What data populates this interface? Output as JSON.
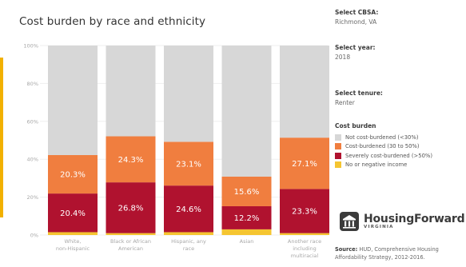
{
  "title": "Cost burden by race and ethnicity",
  "controls": [
    {
      "label": "Select CBSA:",
      "value": "Richmond, VA"
    },
    {
      "label": "Select year:",
      "value": "2018"
    },
    {
      "label": "Select tenure:",
      "value": "Renter"
    }
  ],
  "legend": {
    "title": "Cost burden",
    "items": [
      {
        "label": "Not cost-burdened (<30%)",
        "color": "#d7d7d7"
      },
      {
        "label": "Cost-burdened (30 to 50%)",
        "color": "#f07e3f"
      },
      {
        "label": "Severely cost-burdened (>50%)",
        "color": "#b0122f"
      },
      {
        "label": "No or negative income",
        "color": "#f5c531"
      }
    ]
  },
  "logo": {
    "name": "HousingForward",
    "sub": "VIRGINIA"
  },
  "source": {
    "label": "Source:",
    "text": "HUD, Comprehensive Housing Affordability Strategy, 2012-2016."
  },
  "chart_data": {
    "type": "bar",
    "stacked": true,
    "categories": [
      "White, non-Hispanic",
      "Black or African American",
      "Hispanic, any race",
      "Asian",
      "Another race including multiracial"
    ],
    "y_ticks": [
      "0%",
      "20%",
      "40%",
      "60%",
      "80%",
      "100%"
    ],
    "ylim": [
      0,
      100
    ],
    "series": [
      {
        "name": "No or negative income",
        "color": "#f5c531",
        "values": [
          1.5,
          1.0,
          1.5,
          3.0,
          1.0
        ],
        "labels": [
          "",
          "",
          "",
          "",
          ""
        ]
      },
      {
        "name": "Severely cost-burdened (>50%)",
        "color": "#b0122f",
        "values": [
          20.4,
          26.8,
          24.6,
          12.2,
          23.3
        ],
        "labels": [
          "20.4%",
          "26.8%",
          "24.6%",
          "12.2%",
          "23.3%"
        ]
      },
      {
        "name": "Cost-burdened (30 to 50%)",
        "color": "#f07e3f",
        "values": [
          20.3,
          24.3,
          23.1,
          15.6,
          27.1
        ],
        "labels": [
          "20.3%",
          "24.3%",
          "23.1%",
          "15.6%",
          "27.1%"
        ]
      },
      {
        "name": "Not cost-burdened (<30%)",
        "color": "#d7d7d7",
        "values": [
          57.8,
          47.9,
          50.8,
          69.2,
          48.6
        ],
        "labels": [
          "",
          "",
          "",
          "",
          ""
        ]
      }
    ],
    "grid": true
  }
}
